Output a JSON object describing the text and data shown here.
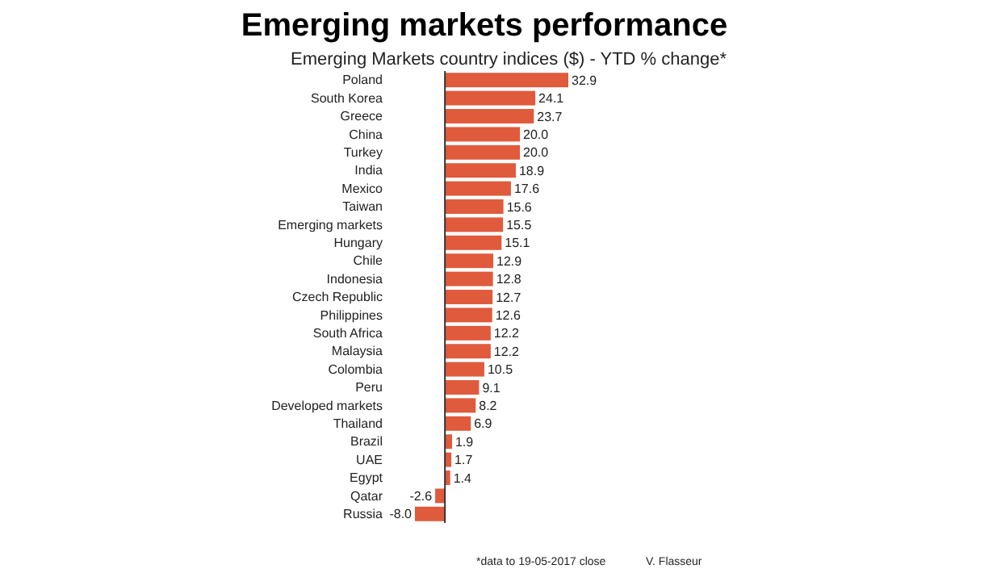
{
  "chart_data": {
    "type": "bar",
    "orientation": "horizontal",
    "title": "Emerging markets performance",
    "subtitle": "Emerging Markets country indices ($) - YTD % change*",
    "categories": [
      "Poland",
      "South Korea",
      "Greece",
      "China",
      "Turkey",
      "India",
      "Mexico",
      "Taiwan",
      "Emerging markets",
      "Hungary",
      "Chile",
      "Indonesia",
      "Czech Republic",
      "Philippines",
      "South Africa",
      "Malaysia",
      "Colombia",
      "Peru",
      "Developed markets",
      "Thailand",
      "Brazil",
      "UAE",
      "Egypt",
      "Qatar",
      "Russia"
    ],
    "values": [
      32.9,
      24.1,
      23.7,
      20.0,
      20.0,
      18.9,
      17.6,
      15.6,
      15.5,
      15.1,
      12.9,
      12.8,
      12.7,
      12.6,
      12.2,
      12.2,
      10.5,
      9.1,
      8.2,
      6.9,
      1.9,
      1.7,
      1.4,
      -2.6,
      -8.0
    ],
    "value_labels": [
      "32.9",
      "24.1",
      "23.7",
      "20.0",
      "20.0",
      "18.9",
      "17.6",
      "15.6",
      "15.5",
      "15.1",
      "12.9",
      "12.8",
      "12.7",
      "12.6",
      "12.2",
      "12.2",
      "10.5",
      "9.1",
      "8.2",
      "6.9",
      "1.9",
      "1.7",
      "1.4",
      "-2.6",
      "-8.0"
    ],
    "color": "#e05a3c",
    "tick_labels": "y",
    "annotations": [
      "*data to 19-05-2017 close",
      "V. Flasseur"
    ]
  }
}
